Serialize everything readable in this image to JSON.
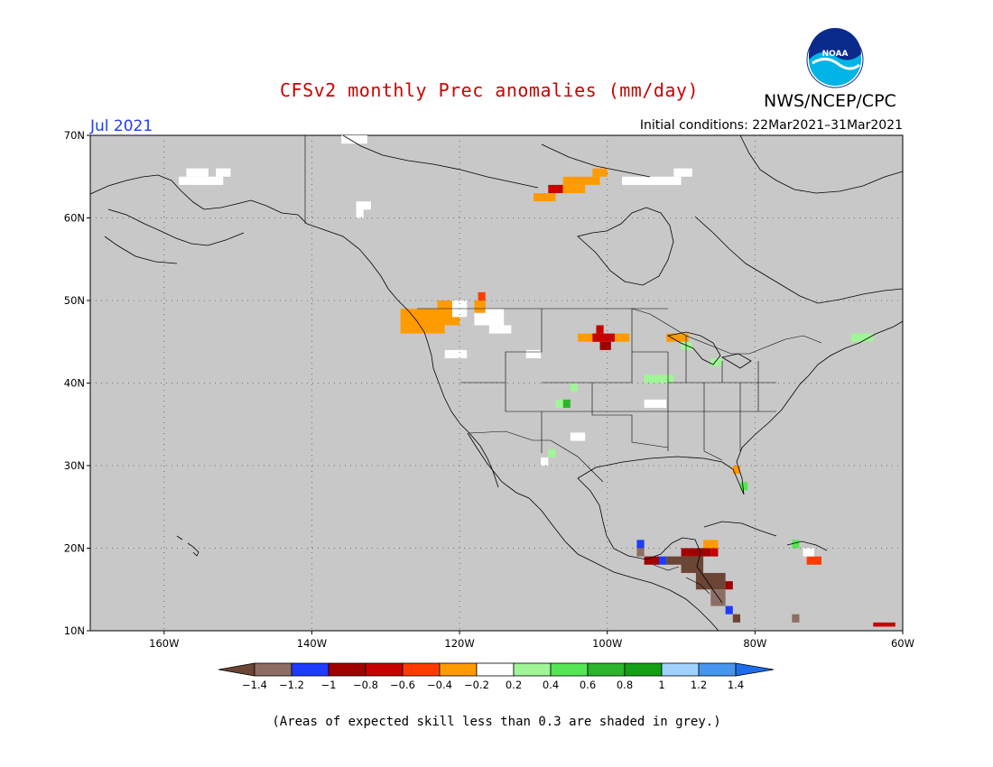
{
  "title": "CFSv2 monthly Prec anomalies (mm/day)",
  "agency": "NWS/NCEP/CPC",
  "logo_text": "NOAA",
  "month_label": "Jul 2021",
  "initial_conditions": "Initial conditions: 22Mar2021–31Mar2021",
  "footnote": "(Areas of expected skill less than 0.3 are shaded in grey.)",
  "map": {
    "lon_range": [
      -170,
      -60
    ],
    "lat_range": [
      10,
      70
    ],
    "lat_ticks": [
      "70N",
      "60N",
      "50N",
      "40N",
      "30N",
      "20N",
      "10N"
    ],
    "lon_ticks": [
      "160W",
      "140W",
      "120W",
      "100W",
      "80W",
      "60W"
    ],
    "grid": true,
    "mask_color": "#c8c8c8"
  },
  "colorbar": {
    "ticks": [
      "-1.4",
      "-1.2",
      "-1",
      "-0.8",
      "-0.6",
      "-0.4",
      "-0.2",
      "0.2",
      "0.4",
      "0.6",
      "0.8",
      "1",
      "1.2",
      "1.4"
    ],
    "colors": [
      "#6b4535",
      "#8c6e64",
      "#1e3cff",
      "#a00000",
      "#c80000",
      "#ff3c00",
      "#ff9b00",
      "#ffffff",
      "#a0f596",
      "#55e655",
      "#2db42d",
      "#14a014",
      "#a0d2ff",
      "#4696f0",
      "#1e6eeb"
    ]
  },
  "anomaly_cells": [
    {
      "lon": -128,
      "lat": 46,
      "w": 6,
      "h": 3,
      "color": "#ff9b00"
    },
    {
      "lon": -123,
      "lat": 47,
      "w": 3,
      "h": 3,
      "color": "#ff9b00"
    },
    {
      "lon": -121,
      "lat": 48,
      "w": 2,
      "h": 2,
      "color": "#ffffff"
    },
    {
      "lon": -118,
      "lat": 47,
      "w": 4,
      "h": 2,
      "color": "#ffffff"
    },
    {
      "lon": -116,
      "lat": 46,
      "w": 3,
      "h": 1,
      "color": "#ffffff"
    },
    {
      "lon": -118,
      "lat": 48.5,
      "w": 1.5,
      "h": 1.5,
      "color": "#ff9b00"
    },
    {
      "lon": -117.5,
      "lat": 50,
      "w": 1,
      "h": 1,
      "color": "#ff3c00"
    },
    {
      "lon": -101.5,
      "lat": 46,
      "w": 1,
      "h": 1,
      "color": "#c80000"
    },
    {
      "lon": -104,
      "lat": 45,
      "w": 7,
      "h": 1,
      "color": "#ff9b00"
    },
    {
      "lon": -102,
      "lat": 45,
      "w": 3,
      "h": 1,
      "color": "#c80000"
    },
    {
      "lon": -101,
      "lat": 44,
      "w": 1.5,
      "h": 1,
      "color": "#a00000"
    },
    {
      "lon": -92,
      "lat": 45,
      "w": 3,
      "h": 1,
      "color": "#ff9b00"
    },
    {
      "lon": -90,
      "lat": 44,
      "w": 1.5,
      "h": 1,
      "color": "#a0f596"
    },
    {
      "lon": -95,
      "lat": 40,
      "w": 4,
      "h": 1,
      "color": "#a0f596"
    },
    {
      "lon": -86,
      "lat": 42,
      "w": 1.5,
      "h": 1,
      "color": "#a0f596"
    },
    {
      "lon": -106,
      "lat": 37,
      "w": 1,
      "h": 1,
      "color": "#2db42d"
    },
    {
      "lon": -107,
      "lat": 37,
      "w": 1,
      "h": 1,
      "color": "#a0f596"
    },
    {
      "lon": -105,
      "lat": 39,
      "w": 1,
      "h": 1,
      "color": "#a0f596"
    },
    {
      "lon": -83,
      "lat": 29,
      "w": 1,
      "h": 1,
      "color": "#ff9b00"
    },
    {
      "lon": -82,
      "lat": 27,
      "w": 1,
      "h": 1,
      "color": "#55e655"
    },
    {
      "lon": -108,
      "lat": 31,
      "w": 1,
      "h": 1,
      "color": "#a0f596"
    },
    {
      "lon": -67,
      "lat": 45,
      "w": 3,
      "h": 1,
      "color": "#a0f596"
    },
    {
      "lon": -75,
      "lat": 20,
      "w": 1,
      "h": 1,
      "color": "#55e655"
    },
    {
      "lon": -73,
      "lat": 18,
      "w": 2,
      "h": 1,
      "color": "#ff3c00"
    },
    {
      "lon": -73.5,
      "lat": 19,
      "w": 1.5,
      "h": 1,
      "color": "#ffffff"
    },
    {
      "lon": -110,
      "lat": 62,
      "w": 3,
      "h": 1,
      "color": "#ff9b00"
    },
    {
      "lon": -108,
      "lat": 63,
      "w": 2,
      "h": 1,
      "color": "#c80000"
    },
    {
      "lon": -106,
      "lat": 64,
      "w": 5,
      "h": 1,
      "color": "#ff9b00"
    },
    {
      "lon": -102,
      "lat": 65,
      "w": 2,
      "h": 1,
      "color": "#ff9b00"
    },
    {
      "lon": -98,
      "lat": 64,
      "w": 8,
      "h": 1,
      "color": "#ffffff"
    },
    {
      "lon": -91,
      "lat": 65,
      "w": 2.5,
      "h": 1,
      "color": "#ffffff"
    },
    {
      "lon": -106,
      "lat": 63,
      "w": 3,
      "h": 1,
      "color": "#ff9b00"
    },
    {
      "lon": -96,
      "lat": 19,
      "w": 1,
      "h": 1,
      "color": "#8c6e64"
    },
    {
      "lon": -96,
      "lat": 20,
      "w": 1,
      "h": 1,
      "color": "#1e3cff"
    },
    {
      "lon": -95,
      "lat": 18,
      "w": 2,
      "h": 1,
      "color": "#a00000"
    },
    {
      "lon": -93,
      "lat": 18,
      "w": 1,
      "h": 1,
      "color": "#1e3cff"
    },
    {
      "lon": -92,
      "lat": 18,
      "w": 2,
      "h": 1,
      "color": "#6b4535"
    },
    {
      "lon": -90,
      "lat": 19,
      "w": 4,
      "h": 1,
      "color": "#a00000"
    },
    {
      "lon": -87,
      "lat": 20,
      "w": 2,
      "h": 1,
      "color": "#ff9b00"
    },
    {
      "lon": -86,
      "lat": 19,
      "w": 1,
      "h": 1,
      "color": "#c80000"
    },
    {
      "lon": -90,
      "lat": 17,
      "w": 3,
      "h": 2,
      "color": "#6b4535"
    },
    {
      "lon": -88,
      "lat": 15,
      "w": 4,
      "h": 2,
      "color": "#6b4535"
    },
    {
      "lon": -86,
      "lat": 13,
      "w": 2,
      "h": 2,
      "color": "#8c6e64"
    },
    {
      "lon": -84,
      "lat": 12,
      "w": 1,
      "h": 1,
      "color": "#1e3cff"
    },
    {
      "lon": -83,
      "lat": 11,
      "w": 1,
      "h": 1,
      "color": "#6b4535"
    },
    {
      "lon": -84,
      "lat": 15,
      "w": 1,
      "h": 1,
      "color": "#a00000"
    },
    {
      "lon": -75,
      "lat": 11,
      "w": 1,
      "h": 1,
      "color": "#8c6e64"
    },
    {
      "lon": -64,
      "lat": 10.5,
      "w": 3,
      "h": 0.5,
      "color": "#c80000"
    }
  ],
  "white_cells": [
    {
      "lon": -158,
      "lat": 64,
      "w": 6,
      "h": 1
    },
    {
      "lon": -157,
      "lat": 65,
      "w": 3,
      "h": 1
    },
    {
      "lon": -153,
      "lat": 65,
      "w": 2,
      "h": 1
    },
    {
      "lon": -134,
      "lat": 61,
      "w": 2,
      "h": 1
    },
    {
      "lon": -134,
      "lat": 60,
      "w": 1,
      "h": 1
    },
    {
      "lon": -136,
      "lat": 69,
      "w": 3.5,
      "h": 1
    },
    {
      "lon": -105,
      "lat": 33,
      "w": 2,
      "h": 1
    },
    {
      "lon": -95,
      "lat": 37,
      "w": 3,
      "h": 1
    },
    {
      "lon": -109,
      "lat": 30,
      "w": 1,
      "h": 1
    },
    {
      "lon": -122,
      "lat": 43,
      "w": 3,
      "h": 1
    },
    {
      "lon": -111,
      "lat": 43,
      "w": 2,
      "h": 1
    }
  ]
}
